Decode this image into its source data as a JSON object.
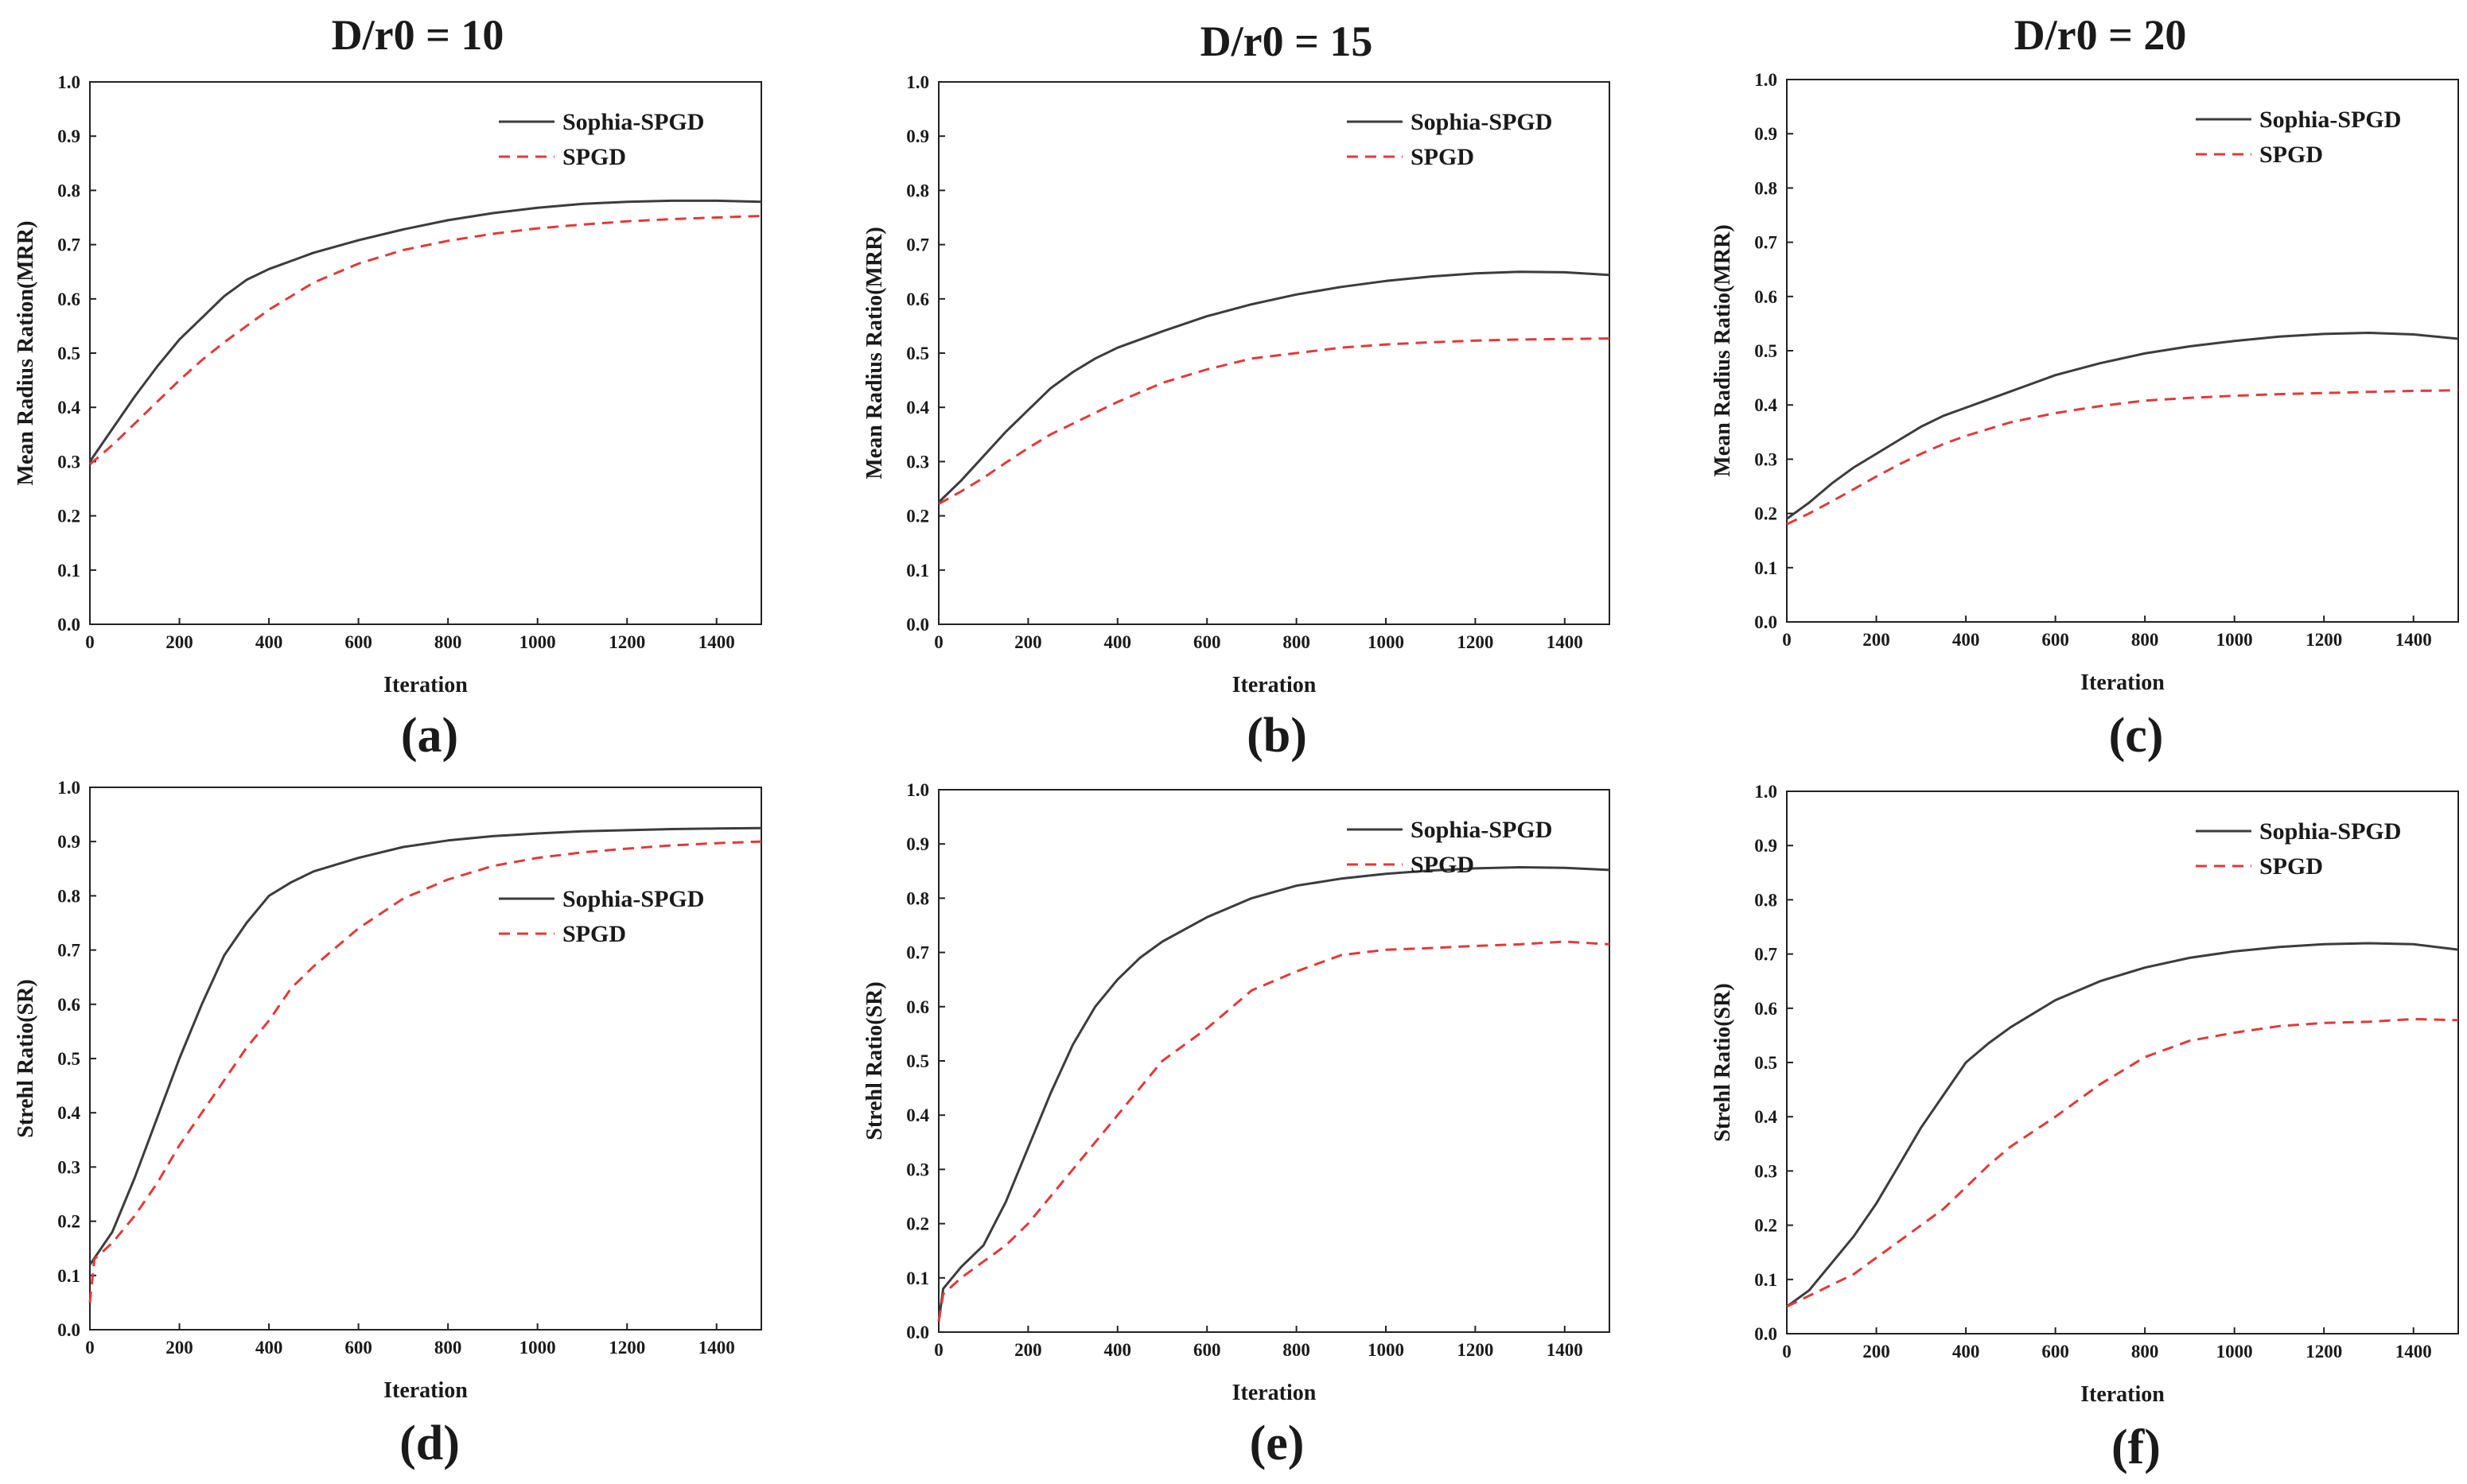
{
  "figure": {
    "column_titles": [
      "D/r0 = 10",
      "D/r0 = 15",
      "D/r0 = 20"
    ]
  },
  "chart_data": [
    {
      "type": "line",
      "panel_label": "(a)",
      "xlabel": "Iteration",
      "ylabel": "Mean Radius Ration(MRR)",
      "xlim": [
        0,
        1500
      ],
      "ylim": [
        0,
        1.0
      ],
      "xticks": [
        0,
        200,
        400,
        600,
        800,
        1000,
        1200,
        1400
      ],
      "yticks": [
        0.0,
        0.1,
        0.2,
        0.3,
        0.4,
        0.5,
        0.6,
        0.7,
        0.8,
        0.9,
        1.0
      ],
      "grid": false,
      "legend": {
        "placement": "top-right"
      },
      "series": [
        {
          "name": "Sophia-SPGD",
          "color": "#3c3c3c",
          "dash": "solid",
          "x": [
            0,
            50,
            100,
            150,
            200,
            250,
            300,
            350,
            400,
            500,
            600,
            700,
            800,
            900,
            1000,
            1100,
            1200,
            1300,
            1400,
            1500
          ],
          "y": [
            0.3,
            0.36,
            0.42,
            0.475,
            0.525,
            0.565,
            0.605,
            0.635,
            0.655,
            0.685,
            0.708,
            0.728,
            0.745,
            0.758,
            0.768,
            0.775,
            0.779,
            0.781,
            0.781,
            0.779
          ]
        },
        {
          "name": "SPGD",
          "color": "#e03a3a",
          "dash": "dashed",
          "x": [
            0,
            50,
            100,
            150,
            200,
            250,
            300,
            350,
            400,
            500,
            600,
            700,
            800,
            900,
            1000,
            1100,
            1200,
            1300,
            1400,
            1500
          ],
          "y": [
            0.295,
            0.33,
            0.37,
            0.41,
            0.45,
            0.487,
            0.52,
            0.55,
            0.58,
            0.63,
            0.665,
            0.69,
            0.707,
            0.72,
            0.73,
            0.737,
            0.743,
            0.747,
            0.75,
            0.753
          ]
        }
      ]
    },
    {
      "type": "line",
      "panel_label": "(b)",
      "xlabel": "Iteration",
      "ylabel": "Mean Radius Ratio(MRR)",
      "xlim": [
        0,
        1500
      ],
      "ylim": [
        0,
        1.0
      ],
      "xticks": [
        0,
        200,
        400,
        600,
        800,
        1000,
        1200,
        1400
      ],
      "yticks": [
        0.0,
        0.1,
        0.2,
        0.3,
        0.4,
        0.5,
        0.6,
        0.7,
        0.8,
        0.9,
        1.0
      ],
      "grid": false,
      "legend": {
        "placement": "top-right"
      },
      "series": [
        {
          "name": "Sophia-SPGD",
          "color": "#3c3c3c",
          "dash": "solid",
          "x": [
            0,
            50,
            100,
            150,
            200,
            250,
            300,
            350,
            400,
            500,
            600,
            700,
            800,
            900,
            1000,
            1100,
            1200,
            1300,
            1400,
            1500
          ],
          "y": [
            0.225,
            0.265,
            0.31,
            0.355,
            0.395,
            0.435,
            0.465,
            0.49,
            0.51,
            0.54,
            0.568,
            0.59,
            0.608,
            0.622,
            0.633,
            0.641,
            0.647,
            0.65,
            0.649,
            0.644
          ]
        },
        {
          "name": "SPGD",
          "color": "#e03a3a",
          "dash": "dashed",
          "x": [
            0,
            50,
            100,
            150,
            200,
            250,
            300,
            350,
            400,
            500,
            600,
            700,
            800,
            900,
            1000,
            1100,
            1200,
            1300,
            1400,
            1500
          ],
          "y": [
            0.222,
            0.245,
            0.27,
            0.298,
            0.325,
            0.35,
            0.37,
            0.39,
            0.41,
            0.445,
            0.47,
            0.49,
            0.5,
            0.51,
            0.516,
            0.52,
            0.523,
            0.525,
            0.526,
            0.527
          ]
        }
      ]
    },
    {
      "type": "line",
      "panel_label": "(c)",
      "xlabel": "Iteration",
      "ylabel": "Mean Radius Ratio(MRR)",
      "xlim": [
        0,
        1500
      ],
      "ylim": [
        0,
        1.0
      ],
      "xticks": [
        0,
        200,
        400,
        600,
        800,
        1000,
        1200,
        1400
      ],
      "yticks": [
        0.0,
        0.1,
        0.2,
        0.3,
        0.4,
        0.5,
        0.6,
        0.7,
        0.8,
        0.9,
        1.0
      ],
      "grid": false,
      "legend": {
        "placement": "top-right"
      },
      "series": [
        {
          "name": "Sophia-SPGD",
          "color": "#3c3c3c",
          "dash": "solid",
          "x": [
            0,
            50,
            100,
            150,
            200,
            250,
            300,
            350,
            400,
            500,
            600,
            700,
            800,
            900,
            1000,
            1100,
            1200,
            1300,
            1400,
            1500
          ],
          "y": [
            0.19,
            0.22,
            0.255,
            0.285,
            0.31,
            0.335,
            0.36,
            0.38,
            0.395,
            0.425,
            0.455,
            0.477,
            0.495,
            0.508,
            0.518,
            0.526,
            0.531,
            0.533,
            0.53,
            0.522
          ]
        },
        {
          "name": "SPGD",
          "color": "#e03a3a",
          "dash": "dashed",
          "x": [
            0,
            50,
            100,
            150,
            200,
            250,
            300,
            350,
            400,
            500,
            600,
            700,
            800,
            900,
            1000,
            1100,
            1200,
            1300,
            1400,
            1500
          ],
          "y": [
            0.18,
            0.2,
            0.222,
            0.245,
            0.268,
            0.29,
            0.31,
            0.328,
            0.343,
            0.368,
            0.385,
            0.398,
            0.408,
            0.413,
            0.417,
            0.42,
            0.422,
            0.424,
            0.426,
            0.427
          ]
        }
      ]
    },
    {
      "type": "line",
      "panel_label": "(d)",
      "xlabel": "Iteration",
      "ylabel": "Strehl Ratio(SR)",
      "xlim": [
        0,
        1500
      ],
      "ylim": [
        0,
        1.0
      ],
      "xticks": [
        0,
        200,
        400,
        600,
        800,
        1000,
        1200,
        1400
      ],
      "yticks": [
        0.0,
        0.1,
        0.2,
        0.3,
        0.4,
        0.5,
        0.6,
        0.7,
        0.8,
        0.9,
        1.0
      ],
      "grid": false,
      "legend": {
        "placement": "center-right"
      },
      "series": [
        {
          "name": "Sophia-SPGD",
          "color": "#3c3c3c",
          "dash": "solid",
          "x": [
            0,
            25,
            50,
            100,
            150,
            200,
            250,
            300,
            350,
            400,
            450,
            500,
            600,
            700,
            800,
            900,
            1000,
            1100,
            1200,
            1300,
            1400,
            1500
          ],
          "y": [
            0.12,
            0.15,
            0.18,
            0.28,
            0.39,
            0.5,
            0.6,
            0.69,
            0.75,
            0.8,
            0.825,
            0.845,
            0.87,
            0.89,
            0.902,
            0.91,
            0.915,
            0.919,
            0.921,
            0.923,
            0.924,
            0.925
          ]
        },
        {
          "name": "SPGD",
          "color": "#e03a3a",
          "dash": "dashed",
          "x": [
            0,
            10,
            50,
            100,
            150,
            200,
            250,
            300,
            350,
            400,
            450,
            500,
            600,
            700,
            800,
            900,
            1000,
            1100,
            1200,
            1300,
            1400,
            1500
          ],
          "y": [
            0.05,
            0.13,
            0.16,
            0.21,
            0.27,
            0.34,
            0.4,
            0.46,
            0.52,
            0.57,
            0.63,
            0.67,
            0.74,
            0.795,
            0.83,
            0.855,
            0.87,
            0.88,
            0.887,
            0.893,
            0.897,
            0.9
          ]
        }
      ]
    },
    {
      "type": "line",
      "panel_label": "(e)",
      "xlabel": "Iteration",
      "ylabel": "Strehl Ratio(SR)",
      "xlim": [
        0,
        1500
      ],
      "ylim": [
        0,
        1.0
      ],
      "xticks": [
        0,
        200,
        400,
        600,
        800,
        1000,
        1200,
        1400
      ],
      "yticks": [
        0.0,
        0.1,
        0.2,
        0.3,
        0.4,
        0.5,
        0.6,
        0.7,
        0.8,
        0.9,
        1.0
      ],
      "grid": false,
      "legend": {
        "placement": "top-right"
      },
      "series": [
        {
          "name": "Sophia-SPGD",
          "color": "#3c3c3c",
          "dash": "solid",
          "x": [
            0,
            10,
            50,
            100,
            150,
            200,
            250,
            300,
            350,
            400,
            450,
            500,
            600,
            700,
            800,
            900,
            1000,
            1100,
            1200,
            1300,
            1400,
            1500
          ],
          "y": [
            0.02,
            0.08,
            0.12,
            0.16,
            0.24,
            0.34,
            0.44,
            0.53,
            0.6,
            0.65,
            0.69,
            0.72,
            0.765,
            0.8,
            0.823,
            0.836,
            0.845,
            0.851,
            0.855,
            0.857,
            0.856,
            0.852
          ]
        },
        {
          "name": "SPGD",
          "color": "#e03a3a",
          "dash": "dashed",
          "x": [
            0,
            10,
            50,
            100,
            150,
            200,
            250,
            300,
            350,
            400,
            450,
            500,
            600,
            700,
            800,
            900,
            1000,
            1100,
            1200,
            1300,
            1400,
            1500
          ],
          "y": [
            0.02,
            0.07,
            0.1,
            0.13,
            0.16,
            0.2,
            0.25,
            0.3,
            0.35,
            0.4,
            0.45,
            0.5,
            0.56,
            0.63,
            0.665,
            0.695,
            0.705,
            0.708,
            0.712,
            0.715,
            0.72,
            0.715
          ]
        }
      ]
    },
    {
      "type": "line",
      "panel_label": "(f)",
      "xlabel": "Iteration",
      "ylabel": "Strehl Ratio(SR)",
      "xlim": [
        0,
        1500
      ],
      "ylim": [
        0,
        1.0
      ],
      "xticks": [
        0,
        200,
        400,
        600,
        800,
        1000,
        1200,
        1400
      ],
      "yticks": [
        0.0,
        0.1,
        0.2,
        0.3,
        0.4,
        0.5,
        0.6,
        0.7,
        0.8,
        0.9,
        1.0
      ],
      "grid": false,
      "legend": {
        "placement": "top-right"
      },
      "series": [
        {
          "name": "Sophia-SPGD",
          "color": "#3c3c3c",
          "dash": "solid",
          "x": [
            0,
            50,
            100,
            150,
            200,
            250,
            300,
            350,
            400,
            450,
            500,
            600,
            700,
            800,
            900,
            1000,
            1100,
            1200,
            1300,
            1400,
            1500
          ],
          "y": [
            0.05,
            0.08,
            0.13,
            0.18,
            0.24,
            0.31,
            0.38,
            0.44,
            0.5,
            0.535,
            0.565,
            0.615,
            0.65,
            0.675,
            0.693,
            0.705,
            0.713,
            0.718,
            0.72,
            0.718,
            0.708
          ]
        },
        {
          "name": "SPGD",
          "color": "#e03a3a",
          "dash": "dashed",
          "x": [
            0,
            50,
            100,
            150,
            200,
            250,
            300,
            350,
            400,
            450,
            500,
            600,
            700,
            800,
            900,
            1000,
            1100,
            1200,
            1300,
            1400,
            1500
          ],
          "y": [
            0.05,
            0.07,
            0.09,
            0.11,
            0.14,
            0.17,
            0.2,
            0.23,
            0.27,
            0.31,
            0.345,
            0.4,
            0.46,
            0.51,
            0.54,
            0.555,
            0.567,
            0.573,
            0.575,
            0.58,
            0.578
          ]
        }
      ]
    }
  ]
}
